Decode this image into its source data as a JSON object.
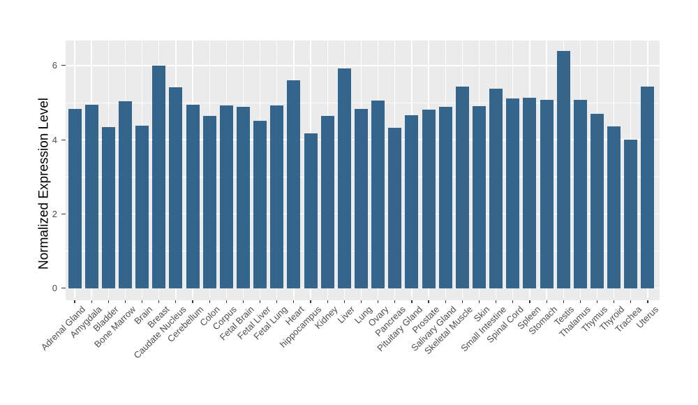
{
  "chart_data": {
    "type": "bar",
    "title": "",
    "xlabel": "",
    "ylabel": "Normalized Expression Level",
    "categories": [
      "Adrenal Gland",
      "Amygdala",
      "Bladder",
      "Bone Marrow",
      "Brain",
      "Breast",
      "Caudate Nucleus",
      "Cerebellum",
      "Colon",
      "Corpus",
      "Fetal Brain",
      "Fetal Liver",
      "Fetal Lung",
      "Heart",
      "hippocampus",
      "Kidney",
      "Liver",
      "Lung",
      "Ovary",
      "Pancreas",
      "Pituitary Gland",
      "Prostate",
      "Salivary Gland",
      "Skeletal Muscle",
      "Skin",
      "Small Intestine",
      "Spinal Cord",
      "Spleen",
      "Stomach",
      "Testis",
      "Thalamus",
      "Thymus",
      "Thyroid",
      "Trachea",
      "Uterus"
    ],
    "values": [
      4.84,
      4.94,
      4.35,
      5.04,
      4.37,
      6.0,
      5.41,
      4.94,
      4.64,
      4.92,
      4.88,
      4.52,
      4.93,
      5.6,
      4.17,
      4.65,
      5.92,
      4.83,
      5.06,
      4.32,
      4.66,
      4.81,
      4.89,
      5.43,
      4.91,
      5.38,
      5.11,
      5.13,
      5.07,
      6.39,
      5.07,
      4.7,
      4.36,
      4.0,
      5.44
    ],
    "ylim": [
      0,
      6.7
    ],
    "yticks": [
      0,
      2,
      4,
      6
    ],
    "yticks_minor": [
      1,
      3,
      5
    ],
    "grid": "on",
    "legend_position": "none",
    "style": {
      "bar_color": "#36658C",
      "panel_background": "#EBEBEB",
      "gridline_color": "#FFFFFF",
      "tick_label_color": "#4D4D4D",
      "tick_mark_color": "#333333",
      "axis_title_color": "#000000",
      "figure_background": "#FFFFFF"
    }
  }
}
